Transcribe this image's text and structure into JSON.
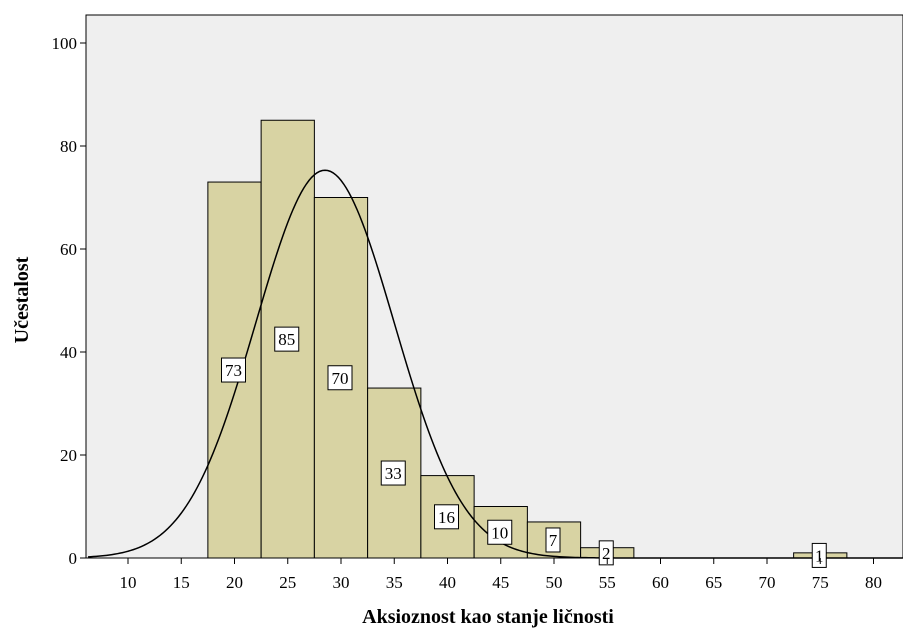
{
  "chart_data": {
    "type": "bar",
    "subtype": "histogram",
    "xlabel": "Aksioznost kao stanje ličnosti",
    "ylabel": "Učestalost",
    "xlim": [
      6,
      83
    ],
    "ylim": [
      0,
      105
    ],
    "x_ticks": [
      10,
      15,
      20,
      25,
      30,
      35,
      40,
      45,
      50,
      55,
      60,
      65,
      70,
      75,
      80
    ],
    "y_ticks": [
      0,
      20,
      40,
      60,
      80,
      100
    ],
    "bin_width": 5,
    "bins": [
      {
        "center": 20,
        "value": 73,
        "label": "73"
      },
      {
        "center": 25,
        "value": 85,
        "label": "85"
      },
      {
        "center": 30,
        "value": 70,
        "label": "70"
      },
      {
        "center": 35,
        "value": 33,
        "label": "33"
      },
      {
        "center": 40,
        "value": 16,
        "label": "16"
      },
      {
        "center": 45,
        "value": 10,
        "label": "10"
      },
      {
        "center": 50,
        "value": 7,
        "label": "7"
      },
      {
        "center": 55,
        "value": 2,
        "label": "2"
      },
      {
        "center": 75,
        "value": 1,
        "label": "1"
      }
    ],
    "normal_curve": {
      "mean": 28.5,
      "sd": 6.5,
      "peak": 75.3
    },
    "colors": {
      "plot_background": "#efefef",
      "bar_fill": "#d8d3a3",
      "bar_stroke": "#000000",
      "curve": "#000000"
    },
    "grid": false
  }
}
